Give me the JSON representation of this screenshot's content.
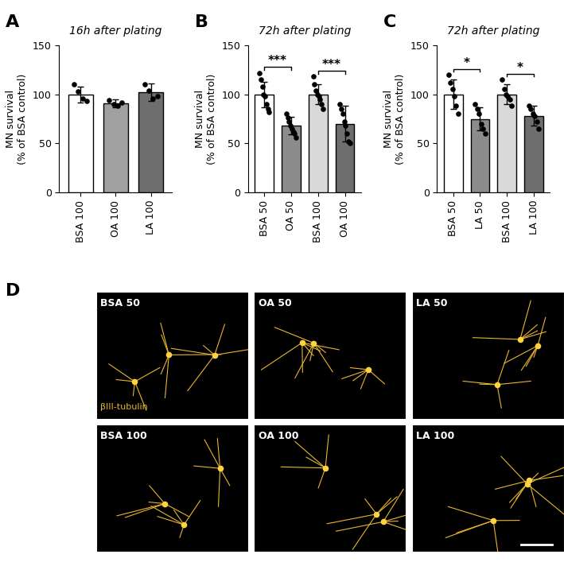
{
  "chart_data": [
    {
      "type": "bar",
      "panel": "A",
      "title": "16h after plating",
      "ylabel": "MN survival\n(% of BSA control)",
      "categories": [
        "BSA 100",
        "OA 100",
        "LA 100"
      ],
      "values": [
        100,
        91,
        102
      ],
      "errors": [
        8,
        4,
        9
      ],
      "points": [
        [
          110,
          103,
          96,
          93
        ],
        [
          94,
          90,
          88,
          92
        ],
        [
          110,
          104,
          96,
          98
        ]
      ],
      "colors": [
        "#ffffff",
        "#a0a0a0",
        "#6e6e6e"
      ],
      "ylim": [
        0,
        150
      ],
      "yticks": [
        0,
        50,
        100,
        150
      ],
      "grid": false,
      "annotations": []
    },
    {
      "type": "bar",
      "panel": "B",
      "title": "72h after plating",
      "ylabel": "MN survival\n(% of BSA control)",
      "categories": [
        "BSA 50",
        "OA 50",
        "BSA 100",
        "OA 100"
      ],
      "values": [
        100,
        68,
        100,
        70
      ],
      "errors": [
        13,
        9,
        10,
        18
      ],
      "points": [
        [
          122,
          115,
          108,
          100,
          98,
          90,
          85,
          82
        ],
        [
          80,
          76,
          72,
          68,
          65,
          62,
          60,
          56
        ],
        [
          118,
          110,
          104,
          100,
          98,
          95,
          90,
          85
        ],
        [
          90,
          85,
          80,
          72,
          68,
          60,
          52,
          50
        ]
      ],
      "colors": [
        "#ffffff",
        "#8c8c8c",
        "#d9d9d9",
        "#6e6e6e"
      ],
      "ylim": [
        0,
        150
      ],
      "yticks": [
        0,
        50,
        100,
        150
      ],
      "grid": false,
      "annotations": [
        {
          "between": [
            "BSA 50",
            "OA 50"
          ],
          "text": "***"
        },
        {
          "between": [
            "BSA 100",
            "OA 100"
          ],
          "text": "***"
        }
      ]
    },
    {
      "type": "bar",
      "panel": "C",
      "title": "72h after plating",
      "ylabel": "MN survival\n(% of BSA control)",
      "categories": [
        "BSA 50",
        "LA 50",
        "BSA 100",
        "LA 100"
      ],
      "values": [
        100,
        75,
        100,
        78
      ],
      "errors": [
        15,
        12,
        10,
        10
      ],
      "points": [
        [
          120,
          112,
          105,
          98,
          88,
          80
        ],
        [
          90,
          85,
          80,
          70,
          65,
          60
        ],
        [
          115,
          105,
          100,
          98,
          95,
          88
        ],
        [
          88,
          85,
          80,
          78,
          72,
          65
        ]
      ],
      "colors": [
        "#ffffff",
        "#8c8c8c",
        "#d9d9d9",
        "#6e6e6e"
      ],
      "ylim": [
        0,
        150
      ],
      "yticks": [
        0,
        50,
        100,
        150
      ],
      "grid": false,
      "annotations": [
        {
          "between": [
            "BSA 50",
            "LA 50"
          ],
          "text": "*"
        },
        {
          "between": [
            "BSA 100",
            "LA 100"
          ],
          "text": "*"
        }
      ]
    }
  ],
  "panel_D": {
    "label": "D",
    "stain": "βIII-tubulin",
    "images": [
      [
        "BSA 50",
        "OA 50",
        "LA 50"
      ],
      [
        "BSA 100",
        "OA 100",
        "LA 100"
      ]
    ]
  }
}
